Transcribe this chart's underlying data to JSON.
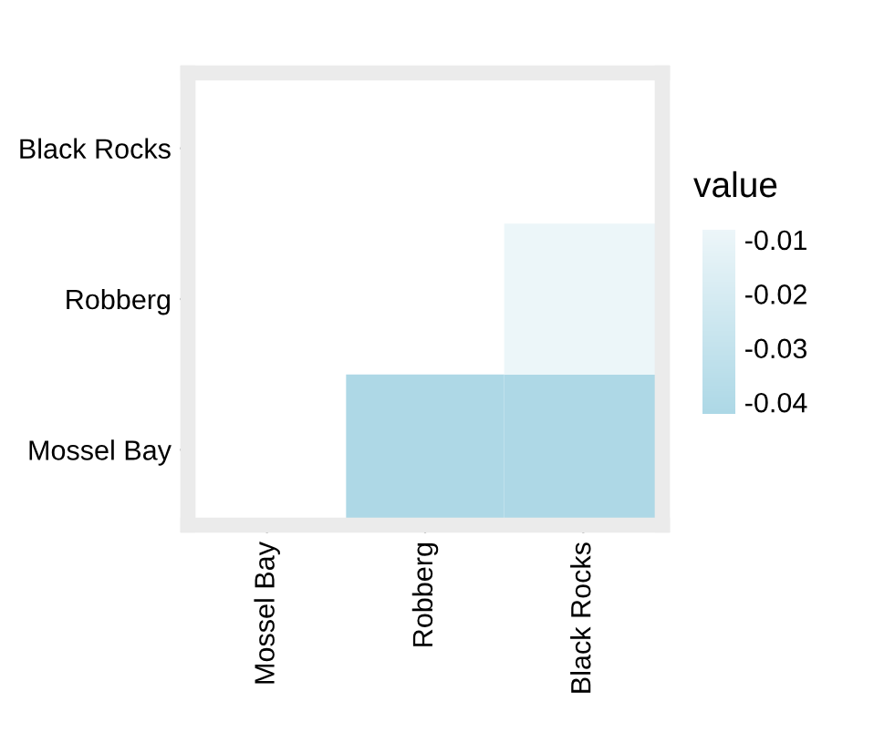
{
  "chart_data": {
    "type": "heatmap",
    "legend_title": "value",
    "categories": [
      "Mossel Bay",
      "Robberg",
      "Black Rocks"
    ],
    "y_categories": [
      "Black Rocks",
      "Robberg",
      "Mossel Bay"
    ],
    "cells": [
      [
        null,
        null,
        null
      ],
      [
        null,
        null,
        -0.009
      ],
      [
        null,
        -0.042,
        -0.042
      ]
    ],
    "colors": [
      "#add8e6",
      "#edf6f9"
    ],
    "clim": [
      -0.0425,
      -0.0085
    ],
    "cticks": [
      -0.04,
      -0.03,
      -0.02,
      -0.01
    ],
    "grid": false
  }
}
